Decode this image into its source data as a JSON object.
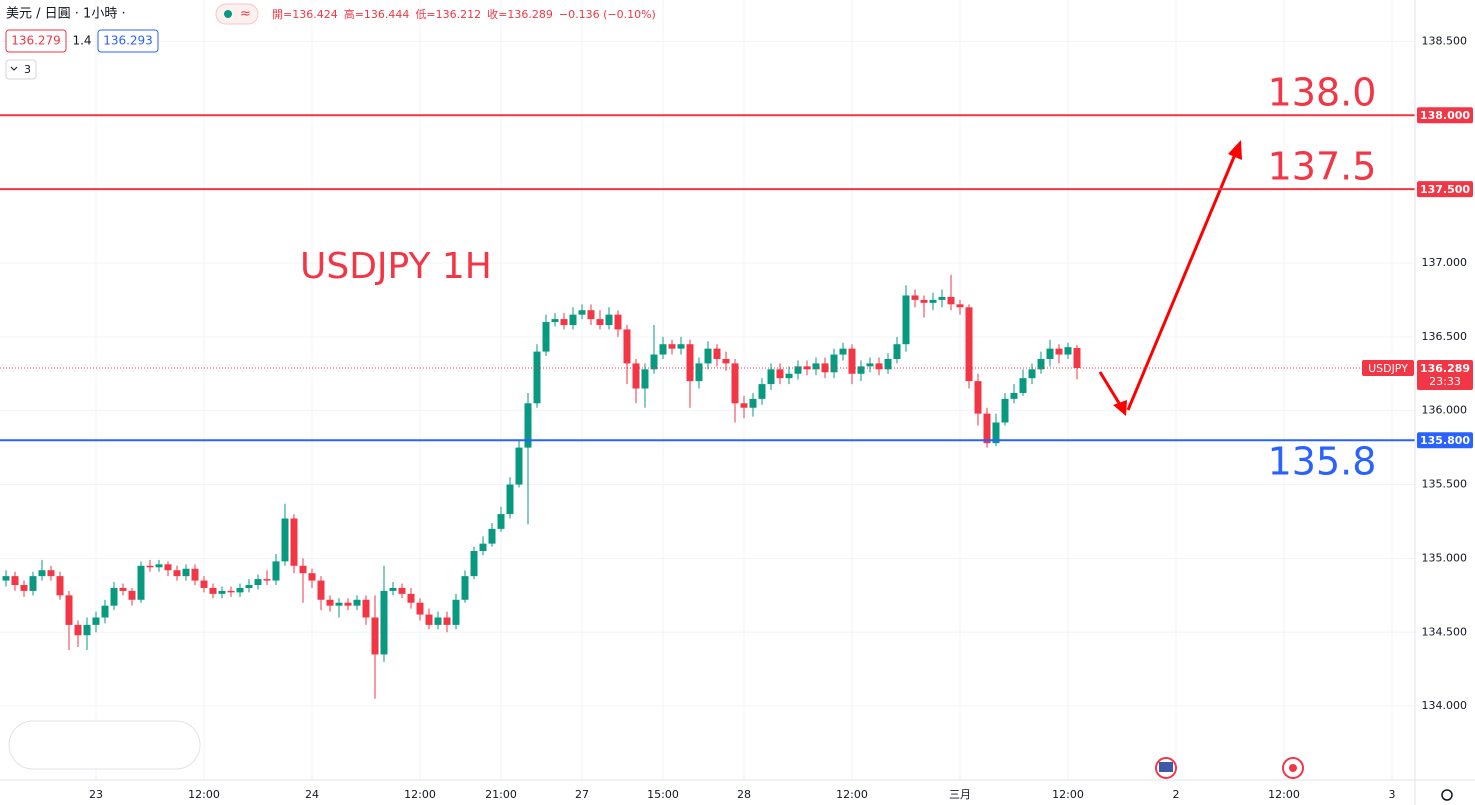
{
  "chart_data": {
    "type": "candlestick",
    "header": {
      "symbol": "美元 / 日圓 · 1小時 ·",
      "ohlc": [
        "開=136.424",
        "高=136.444",
        "低=136.212",
        "收=136.289"
      ],
      "change": "−0.136 (−0.10%)",
      "bid": "136.279",
      "spread": "1.4",
      "ask": "136.293",
      "indicators": "3"
    },
    "annotation": "USDJPY 1H",
    "up_color": "#089981",
    "down_color": "#f23645",
    "grid": true,
    "ylim": [
      133.5,
      138.78
    ],
    "yticks": [
      {
        "value": 134,
        "label": "134.000"
      },
      {
        "value": 134.5,
        "label": "134.500"
      },
      {
        "value": 135,
        "label": "135.000"
      },
      {
        "value": 135.5,
        "label": "135.500"
      },
      {
        "value": 136,
        "label": "136.000"
      },
      {
        "value": 136.5,
        "label": "136.500"
      },
      {
        "value": 137,
        "label": "137.000"
      },
      {
        "value": 137.5,
        "label": "137.500"
      },
      {
        "value": 138,
        "label": "138.000"
      },
      {
        "value": 138.5,
        "label": "138.500"
      }
    ],
    "levels": [
      {
        "value": 138.0,
        "label": "138.0",
        "axis_label": "138.000",
        "color": "#f23645"
      },
      {
        "value": 137.5,
        "label": "137.5",
        "axis_label": "137.500",
        "color": "#f23645"
      },
      {
        "value": 135.8,
        "label": "135.8",
        "axis_label": "135.800",
        "color": "#2962ff"
      }
    ],
    "last": {
      "symbol": "USDJPY",
      "value": 136.289,
      "countdown": "23:33",
      "color": "#f23645"
    },
    "categories": [
      null,
      null,
      null,
      null,
      null,
      null,
      null,
      null,
      null,
      null,
      "23",
      null,
      null,
      null,
      null,
      null,
      null,
      null,
      null,
      null,
      null,
      null,
      "12:00",
      null,
      null,
      null,
      null,
      null,
      null,
      null,
      null,
      null,
      null,
      null,
      "24",
      null,
      null,
      null,
      null,
      null,
      null,
      null,
      null,
      null,
      null,
      null,
      "12:00",
      null,
      null,
      null,
      null,
      null,
      null,
      null,
      null,
      "21:00",
      null,
      null,
      null,
      null,
      null,
      null,
      null,
      null,
      "27",
      null,
      null,
      null,
      null,
      null,
      null,
      null,
      null,
      "15:00",
      null,
      null,
      null,
      null,
      null,
      null,
      null,
      null,
      "28",
      null,
      null,
      null,
      null,
      null,
      null,
      null,
      null,
      null,
      null,
      null,
      "12:00",
      null,
      null,
      null,
      null,
      null,
      null,
      null,
      null,
      null,
      null,
      null,
      "三月",
      null,
      null,
      null,
      null,
      null,
      null,
      null,
      null,
      null,
      null,
      null,
      "12:00",
      null,
      null,
      null,
      null,
      null,
      null,
      null,
      null,
      null,
      null,
      null,
      "2",
      null,
      null,
      null,
      null,
      null,
      null,
      null,
      null,
      null,
      null,
      null,
      "12:00",
      null,
      null,
      null,
      null,
      null,
      null,
      null,
      null,
      null,
      null,
      null,
      "3"
    ],
    "open": [
      134.85,
      134.88,
      134.82,
      134.78,
      134.88,
      134.92,
      134.88,
      134.75,
      134.55,
      134.48,
      134.55,
      134.6,
      134.68,
      134.8,
      134.78,
      134.72,
      134.95,
      134.94,
      134.96,
      134.92,
      134.88,
      134.93,
      134.85,
      134.8,
      134.76,
      134.78,
      134.77,
      134.8,
      134.82,
      134.86,
      134.85,
      134.98,
      135.27,
      134.95,
      134.9,
      134.85,
      134.72,
      134.68,
      134.7,
      134.68,
      134.72,
      134.6,
      134.35,
      134.78,
      134.8,
      134.76,
      134.7,
      134.62,
      134.55,
      134.6,
      134.55,
      134.72,
      134.88,
      135.05,
      135.1,
      135.2,
      135.3,
      135.5,
      135.75,
      136.05,
      136.4,
      136.6,
      136.62,
      136.58,
      136.65,
      136.68,
      136.62,
      136.58,
      136.65,
      136.55,
      136.32,
      136.15,
      136.28,
      136.38,
      136.45,
      136.42,
      136.45,
      136.2,
      136.32,
      136.42,
      136.35,
      136.32,
      136.05,
      136.02,
      136.08,
      136.18,
      136.28,
      136.22,
      136.25,
      136.3,
      136.28,
      136.32,
      136.26,
      136.38,
      136.42,
      136.25,
      136.3,
      136.32,
      136.28,
      136.35,
      136.45,
      136.78,
      136.75,
      136.73,
      136.75,
      136.77,
      136.72,
      136.7,
      136.2,
      135.98,
      135.78,
      135.92,
      136.08,
      136.12,
      136.22,
      136.28,
      136.35,
      136.42,
      136.38,
      136.424,
      null,
      null,
      null,
      null,
      null,
      null,
      null,
      null,
      null,
      null,
      null,
      null,
      null,
      null,
      null,
      null,
      null,
      null,
      null,
      null,
      null,
      null,
      null,
      null,
      null,
      null,
      null,
      null,
      null,
      null,
      null,
      null,
      null,
      null,
      null
    ],
    "high": [
      134.92,
      134.91,
      134.85,
      134.91,
      134.99,
      134.95,
      134.91,
      134.78,
      134.58,
      134.6,
      134.64,
      134.72,
      134.84,
      134.83,
      134.8,
      134.98,
      134.99,
      134.99,
      134.98,
      134.95,
      134.96,
      134.96,
      134.88,
      134.83,
      134.81,
      134.81,
      134.83,
      134.86,
      134.89,
      134.92,
      135.03,
      135.37,
      135.3,
      135.0,
      134.93,
      134.88,
      134.75,
      134.73,
      134.73,
      134.75,
      134.75,
      134.75,
      134.95,
      134.84,
      134.83,
      134.8,
      134.73,
      134.66,
      134.64,
      134.64,
      134.76,
      134.92,
      135.08,
      135.15,
      135.24,
      135.35,
      135.55,
      135.8,
      136.12,
      136.45,
      136.65,
      136.66,
      136.66,
      136.7,
      136.72,
      136.72,
      136.68,
      136.7,
      136.68,
      136.58,
      136.35,
      136.32,
      136.58,
      136.5,
      136.48,
      136.5,
      136.48,
      136.36,
      136.47,
      136.45,
      136.4,
      136.35,
      136.1,
      136.12,
      136.22,
      136.32,
      136.32,
      136.3,
      136.34,
      136.34,
      136.36,
      136.36,
      136.42,
      136.46,
      136.45,
      136.34,
      136.36,
      136.36,
      136.39,
      136.5,
      136.85,
      136.82,
      136.78,
      136.8,
      136.82,
      136.92,
      136.75,
      136.72,
      136.25,
      136.02,
      135.98,
      136.12,
      136.18,
      136.28,
      136.32,
      136.4,
      136.48,
      136.45,
      136.46,
      136.444,
      null,
      null,
      null,
      null,
      null,
      null,
      null,
      null,
      null,
      null,
      null,
      null,
      null,
      null,
      null,
      null,
      null,
      null,
      null,
      null,
      null,
      null,
      null,
      null,
      null,
      null,
      null,
      null,
      null,
      null,
      null,
      null,
      null,
      null,
      null
    ],
    "low": [
      134.81,
      134.78,
      134.74,
      134.75,
      134.85,
      134.85,
      134.72,
      134.38,
      134.4,
      134.38,
      134.5,
      134.56,
      134.65,
      134.75,
      134.68,
      134.7,
      134.91,
      134.91,
      134.88,
      134.85,
      134.85,
      134.82,
      134.77,
      134.73,
      134.73,
      134.74,
      134.74,
      134.77,
      134.79,
      134.82,
      134.82,
      134.95,
      134.9,
      134.7,
      134.8,
      134.65,
      134.64,
      134.6,
      134.65,
      134.65,
      134.55,
      134.05,
      134.3,
      134.75,
      134.73,
      134.66,
      134.58,
      134.52,
      134.52,
      134.5,
      134.52,
      134.7,
      134.86,
      135.02,
      135.08,
      135.18,
      135.27,
      135.48,
      135.23,
      136.02,
      136.37,
      136.57,
      136.55,
      136.55,
      136.62,
      136.58,
      136.55,
      136.55,
      136.5,
      136.18,
      136.05,
      136.02,
      136.25,
      136.35,
      136.38,
      136.38,
      136.02,
      136.15,
      136.28,
      136.3,
      136.27,
      135.92,
      135.95,
      135.96,
      136.04,
      136.14,
      136.18,
      136.18,
      136.21,
      136.24,
      136.24,
      136.22,
      136.22,
      136.34,
      136.18,
      136.2,
      136.26,
      136.24,
      136.25,
      136.32,
      136.4,
      136.7,
      136.63,
      136.68,
      136.7,
      136.68,
      136.65,
      136.15,
      135.9,
      135.75,
      135.76,
      135.9,
      136.05,
      136.1,
      136.18,
      136.25,
      136.3,
      136.32,
      136.35,
      136.212,
      null,
      null,
      null,
      null,
      null,
      null,
      null,
      null,
      null,
      null,
      null,
      null,
      null,
      null,
      null,
      null,
      null,
      null,
      null,
      null,
      null,
      null,
      null,
      null,
      null,
      null,
      null,
      null,
      null,
      null,
      null,
      null,
      null,
      null,
      null
    ],
    "close": [
      134.88,
      134.82,
      134.78,
      134.88,
      134.92,
      134.88,
      134.75,
      134.55,
      134.48,
      134.55,
      134.6,
      134.68,
      134.8,
      134.78,
      134.72,
      134.95,
      134.94,
      134.96,
      134.92,
      134.88,
      134.93,
      134.85,
      134.8,
      134.76,
      134.78,
      134.77,
      134.8,
      134.82,
      134.86,
      134.85,
      134.98,
      135.27,
      134.95,
      134.9,
      134.85,
      134.72,
      134.68,
      134.7,
      134.68,
      134.72,
      134.6,
      134.35,
      134.78,
      134.8,
      134.76,
      134.7,
      134.62,
      134.55,
      134.6,
      134.55,
      134.72,
      134.88,
      135.05,
      135.1,
      135.2,
      135.3,
      135.5,
      135.75,
      136.05,
      136.4,
      136.6,
      136.62,
      136.58,
      136.65,
      136.68,
      136.62,
      136.58,
      136.65,
      136.55,
      136.32,
      136.15,
      136.28,
      136.38,
      136.45,
      136.42,
      136.45,
      136.2,
      136.32,
      136.42,
      136.35,
      136.32,
      136.05,
      136.02,
      136.08,
      136.18,
      136.28,
      136.22,
      136.25,
      136.3,
      136.28,
      136.32,
      136.26,
      136.38,
      136.42,
      136.25,
      136.3,
      136.32,
      136.28,
      136.35,
      136.45,
      136.78,
      136.75,
      136.73,
      136.75,
      136.77,
      136.72,
      136.7,
      136.2,
      135.98,
      135.78,
      135.92,
      136.08,
      136.12,
      136.22,
      136.28,
      136.35,
      136.42,
      136.38,
      136.43,
      136.289,
      null,
      null,
      null,
      null,
      null,
      null,
      null,
      null,
      null,
      null,
      null,
      null,
      null,
      null,
      null,
      null,
      null,
      null,
      null,
      null,
      null,
      null,
      null,
      null,
      null,
      null,
      null,
      null,
      null,
      null,
      null,
      null,
      null,
      null,
      null
    ]
  }
}
